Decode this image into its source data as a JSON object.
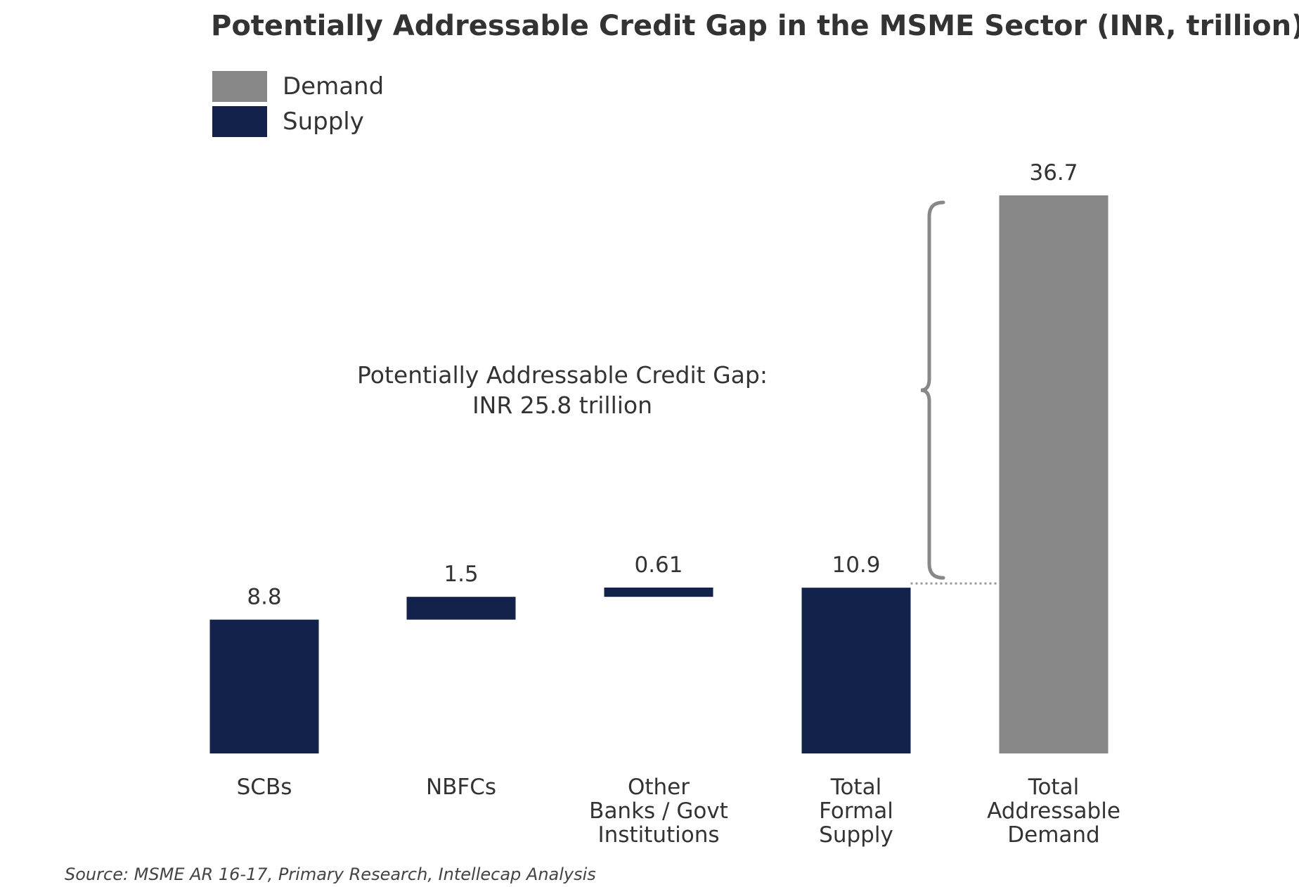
{
  "chart_data": {
    "type": "bar",
    "title": "Potentially Addressable Credit Gap in the MSME Sector (INR, trillion)",
    "categories": [
      [
        "SCBs"
      ],
      [
        "NBFCs"
      ],
      [
        "Other",
        "Banks / Govt",
        "Institutions"
      ],
      [
        "Total",
        "Formal",
        "Supply"
      ],
      [
        "Total",
        "Addressable",
        "Demand"
      ]
    ],
    "series": [
      {
        "name": "Supply",
        "values": [
          8.8,
          1.5,
          0.61,
          10.9,
          null
        ],
        "offsets": [
          0,
          8.8,
          10.3,
          0,
          null
        ]
      },
      {
        "name": "Demand",
        "values": [
          null,
          null,
          null,
          null,
          36.7
        ],
        "offsets": [
          null,
          null,
          null,
          null,
          0
        ]
      }
    ],
    "value_labels": [
      "8.8",
      "1.5",
      "0.61",
      "10.9",
      "36.7"
    ],
    "legend": [
      {
        "name": "Demand",
        "color": "#878787"
      },
      {
        "name": "Supply",
        "color": "#12224a"
      }
    ],
    "annotation": {
      "line1": "Potentially Addressable Credit Gap:",
      "line2": "INR 25.8 trillion",
      "gap_value": 25.8
    },
    "ylim": [
      0,
      36.7
    ],
    "xlabel": "",
    "ylabel": "",
    "grid": false
  },
  "colors": {
    "supply": "#12224a",
    "demand": "#878787",
    "bracket": "#888888",
    "dotted": "#999999"
  },
  "source": "Source: MSME AR 16-17, Primary Research, Intellecap Analysis"
}
